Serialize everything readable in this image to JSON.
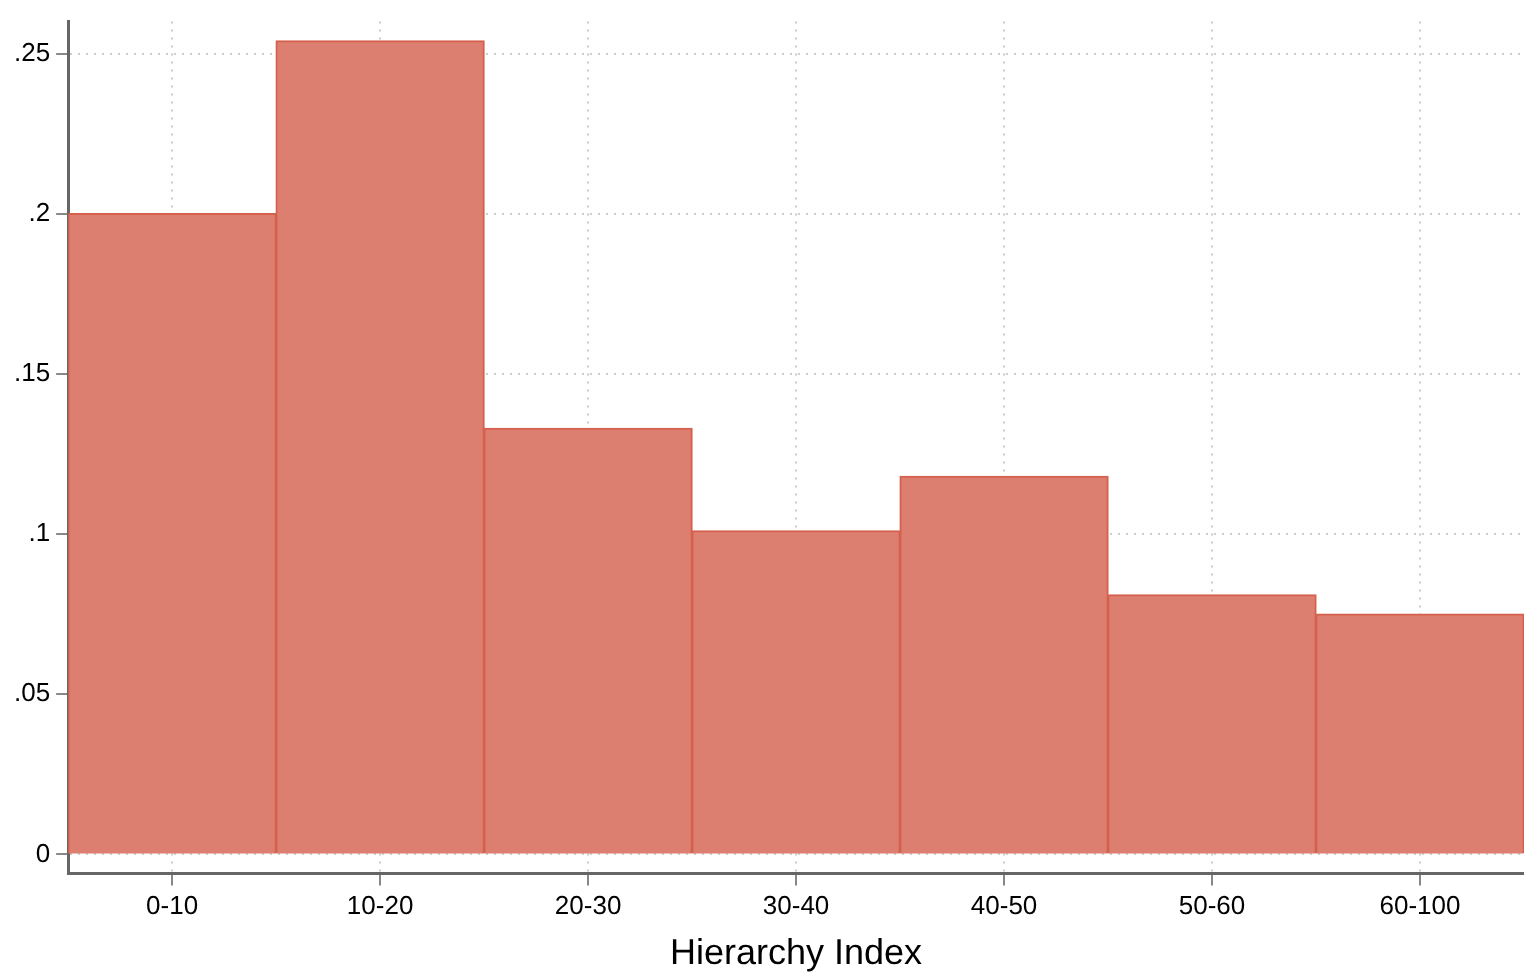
{
  "chart_data": {
    "type": "bar",
    "xlabel": "Hierarchy Index",
    "categories": [
      "0-10",
      "10-20",
      "20-30",
      "30-40",
      "40-50",
      "50-60",
      "60-100"
    ],
    "values": [
      0.2,
      0.254,
      0.133,
      0.101,
      0.118,
      0.081,
      0.075
    ],
    "color": "#dd7f70",
    "ylim": [
      -0.006,
      0.26
    ],
    "yticks": [
      {
        "value": 0,
        "label": "0"
      },
      {
        "value": 0.05,
        "label": ".05"
      },
      {
        "value": 0.1,
        "label": ".1"
      },
      {
        "value": 0.15,
        "label": ".15"
      },
      {
        "value": 0.2,
        "label": ".2"
      },
      {
        "value": 0.25,
        "label": ".25"
      }
    ],
    "grid": true
  }
}
